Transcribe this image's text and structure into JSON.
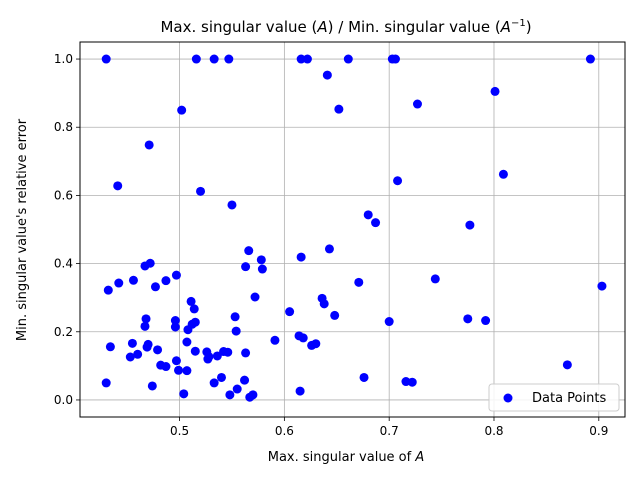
{
  "chart_data": {
    "type": "scatter",
    "title": "Max. singular value (A) / Min. singular value (A⁻¹)",
    "title_parts": {
      "pre": "Max. singular value (",
      "var1": "A",
      "mid": ") / Min. singular value (",
      "var2": "A",
      "sup": "−1",
      "post": ")"
    },
    "xlabel": "Max. singular value of A",
    "xlabel_parts": {
      "pre": "Max. singular value of ",
      "var": "A"
    },
    "ylabel": "Min. singular value's relative error",
    "xlim": [
      0.405,
      0.925
    ],
    "ylim": [
      -0.05,
      1.05
    ],
    "xticks": [
      "0.5",
      "0.6",
      "0.7",
      "0.8",
      "0.9"
    ],
    "yticks": [
      "0.0",
      "0.2",
      "0.4",
      "0.6",
      "0.8",
      "1.0"
    ],
    "xtick_values": [
      0.5,
      0.6,
      0.7,
      0.8,
      0.9
    ],
    "ytick_values": [
      0.0,
      0.2,
      0.4,
      0.6,
      0.8,
      1.0
    ],
    "grid": true,
    "legend_position": "lower-right",
    "series": [
      {
        "name": "Data Points",
        "color": "#0000ff",
        "points": [
          [
            0.43,
            1.0
          ],
          [
            0.516,
            1.0
          ],
          [
            0.533,
            1.0
          ],
          [
            0.547,
            1.0
          ],
          [
            0.616,
            1.0
          ],
          [
            0.622,
            1.0
          ],
          [
            0.661,
            1.0
          ],
          [
            0.703,
            1.0
          ],
          [
            0.706,
            1.0
          ],
          [
            0.892,
            1.0
          ],
          [
            0.641,
            0.953
          ],
          [
            0.801,
            0.905
          ],
          [
            0.727,
            0.868
          ],
          [
            0.652,
            0.853
          ],
          [
            0.502,
            0.85
          ],
          [
            0.471,
            0.748
          ],
          [
            0.809,
            0.662
          ],
          [
            0.708,
            0.643
          ],
          [
            0.441,
            0.628
          ],
          [
            0.52,
            0.612
          ],
          [
            0.55,
            0.572
          ],
          [
            0.68,
            0.543
          ],
          [
            0.687,
            0.52
          ],
          [
            0.777,
            0.513
          ],
          [
            0.643,
            0.443
          ],
          [
            0.566,
            0.438
          ],
          [
            0.616,
            0.419
          ],
          [
            0.578,
            0.411
          ],
          [
            0.472,
            0.401
          ],
          [
            0.467,
            0.393
          ],
          [
            0.563,
            0.391
          ],
          [
            0.579,
            0.384
          ],
          [
            0.497,
            0.366
          ],
          [
            0.744,
            0.355
          ],
          [
            0.456,
            0.351
          ],
          [
            0.487,
            0.35
          ],
          [
            0.671,
            0.345
          ],
          [
            0.442,
            0.343
          ],
          [
            0.903,
            0.334
          ],
          [
            0.477,
            0.332
          ],
          [
            0.432,
            0.322
          ],
          [
            0.572,
            0.302
          ],
          [
            0.636,
            0.298
          ],
          [
            0.511,
            0.289
          ],
          [
            0.638,
            0.282
          ],
          [
            0.514,
            0.267
          ],
          [
            0.605,
            0.259
          ],
          [
            0.648,
            0.248
          ],
          [
            0.553,
            0.244
          ],
          [
            0.468,
            0.238
          ],
          [
            0.775,
            0.238
          ],
          [
            0.496,
            0.233
          ],
          [
            0.792,
            0.233
          ],
          [
            0.7,
            0.23
          ],
          [
            0.515,
            0.228
          ],
          [
            0.512,
            0.222
          ],
          [
            0.467,
            0.216
          ],
          [
            0.496,
            0.214
          ],
          [
            0.508,
            0.206
          ],
          [
            0.554,
            0.202
          ],
          [
            0.614,
            0.188
          ],
          [
            0.618,
            0.182
          ],
          [
            0.591,
            0.175
          ],
          [
            0.507,
            0.17
          ],
          [
            0.455,
            0.166
          ],
          [
            0.47,
            0.163
          ],
          [
            0.63,
            0.165
          ],
          [
            0.626,
            0.16
          ],
          [
            0.434,
            0.156
          ],
          [
            0.469,
            0.155
          ],
          [
            0.479,
            0.147
          ],
          [
            0.515,
            0.143
          ],
          [
            0.542,
            0.142
          ],
          [
            0.526,
            0.141
          ],
          [
            0.546,
            0.14
          ],
          [
            0.563,
            0.138
          ],
          [
            0.46,
            0.134
          ],
          [
            0.536,
            0.129
          ],
          [
            0.528,
            0.127
          ],
          [
            0.453,
            0.126
          ],
          [
            0.527,
            0.12
          ],
          [
            0.497,
            0.115
          ],
          [
            0.482,
            0.102
          ],
          [
            0.87,
            0.103
          ],
          [
            0.487,
            0.098
          ],
          [
            0.499,
            0.087
          ],
          [
            0.507,
            0.086
          ],
          [
            0.54,
            0.066
          ],
          [
            0.676,
            0.066
          ],
          [
            0.562,
            0.058
          ],
          [
            0.716,
            0.054
          ],
          [
            0.533,
            0.05
          ],
          [
            0.722,
            0.052
          ],
          [
            0.43,
            0.05
          ],
          [
            0.474,
            0.041
          ],
          [
            0.555,
            0.032
          ],
          [
            0.615,
            0.026
          ],
          [
            0.504,
            0.018
          ],
          [
            0.548,
            0.015
          ],
          [
            0.57,
            0.015
          ],
          [
            0.567,
            0.008
          ]
        ]
      }
    ]
  }
}
